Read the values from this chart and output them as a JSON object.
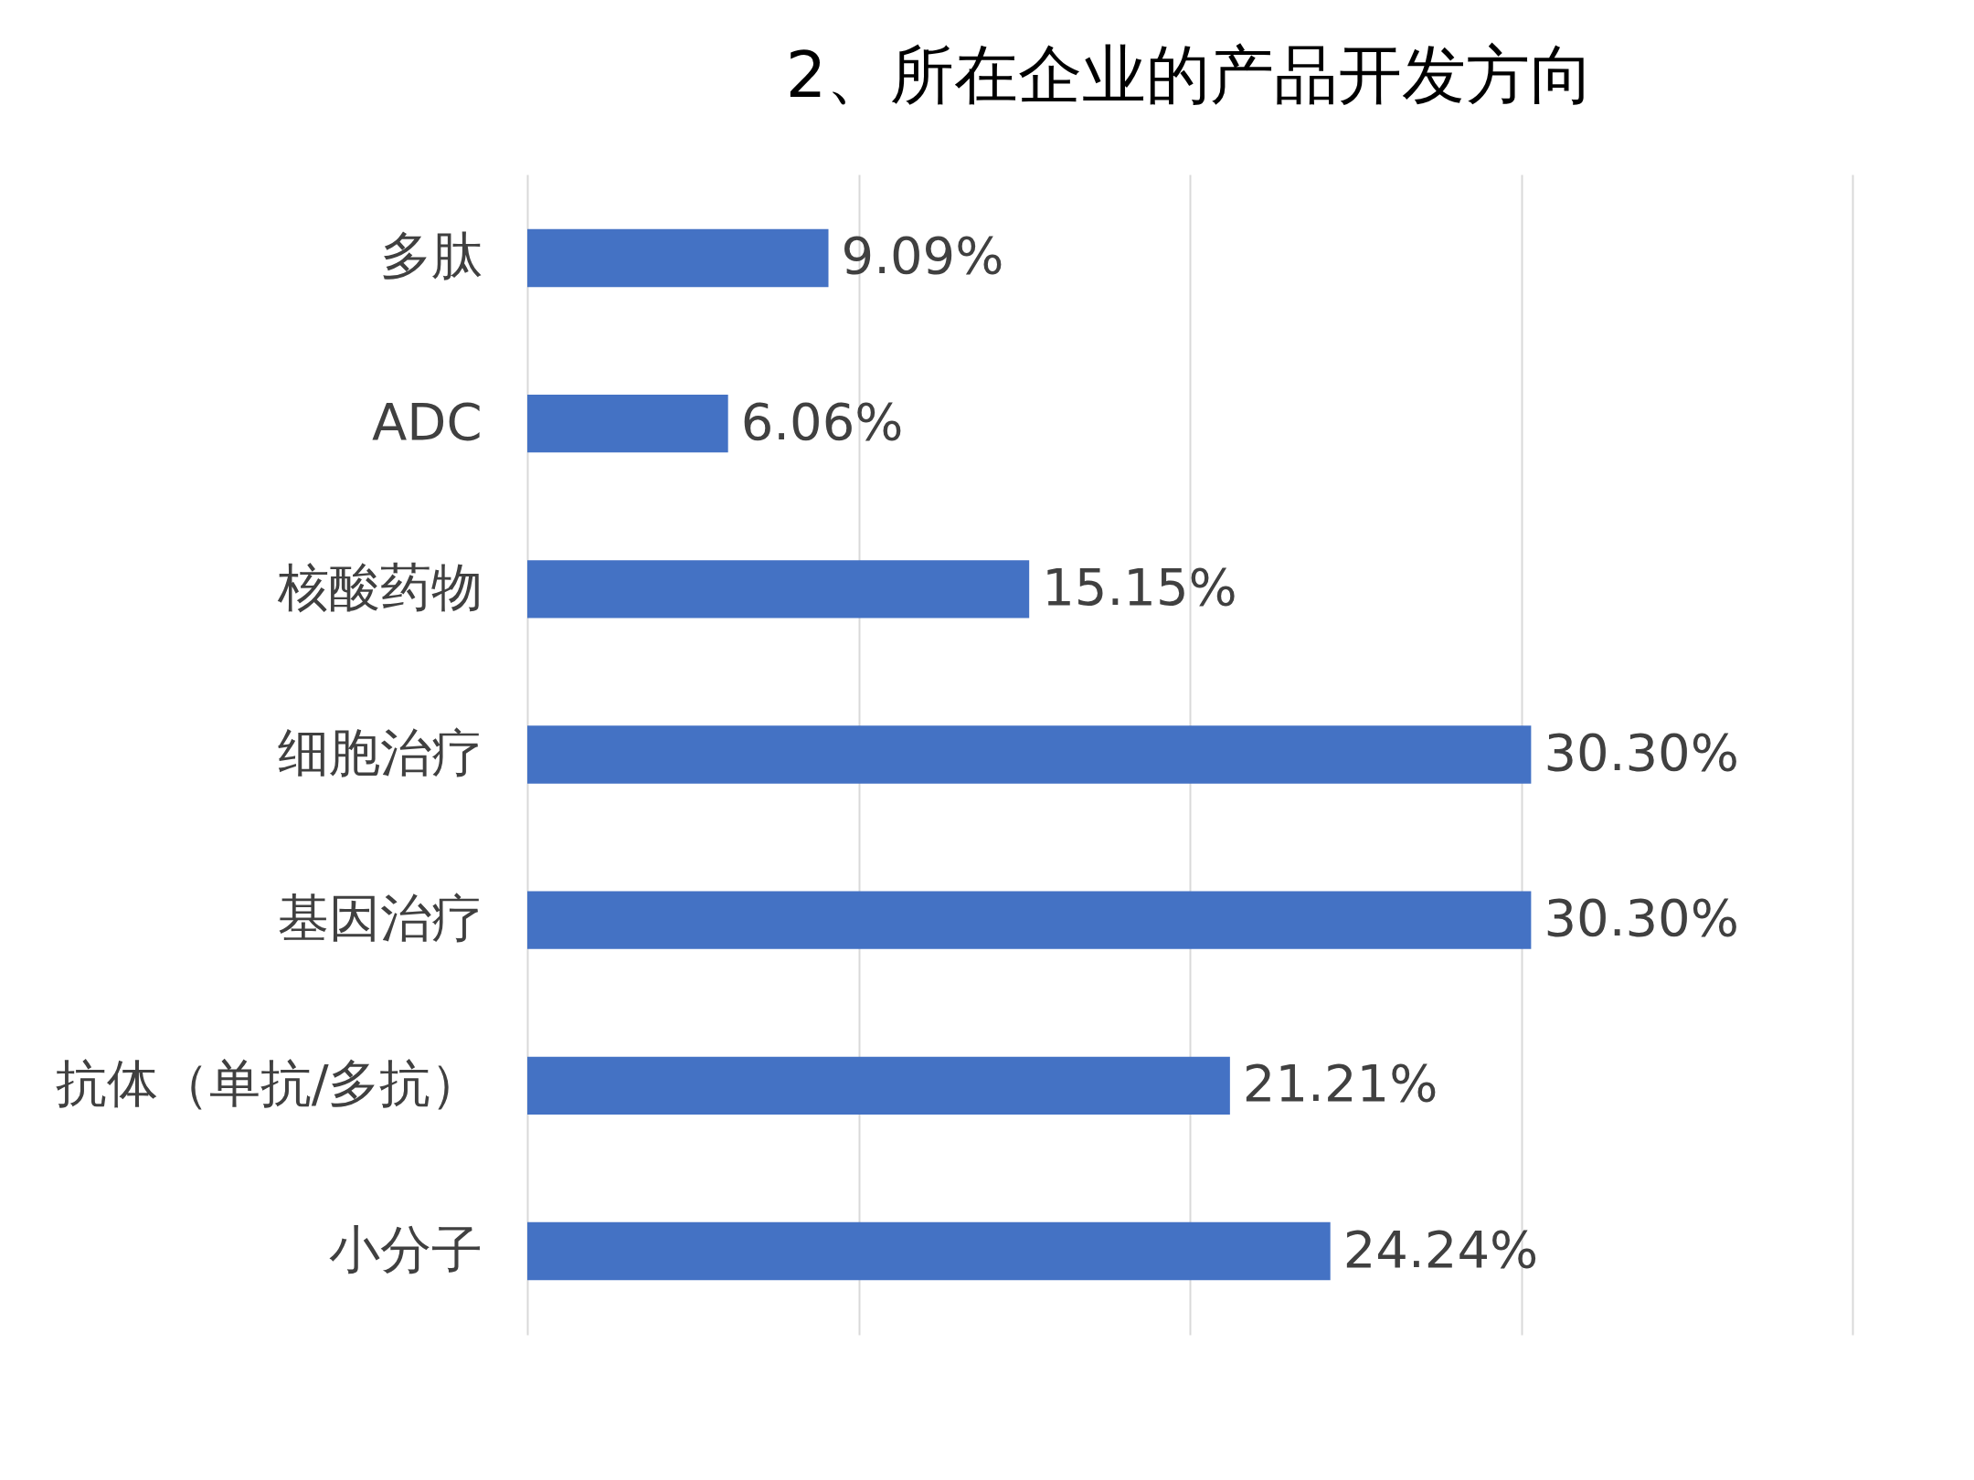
{
  "chart_data": {
    "type": "bar",
    "orientation": "horizontal",
    "title": "2、所在企业的产品开发方向",
    "categories": [
      "多肽",
      "ADC",
      "核酸药物",
      "细胞治疗",
      "基因治疗",
      "抗体（单抗/多抗）",
      "小分子"
    ],
    "values": [
      9.09,
      6.06,
      15.15,
      30.3,
      30.3,
      21.21,
      24.24
    ],
    "value_labels": [
      "9.09%",
      "6.06%",
      "15.15%",
      "30.30%",
      "30.30%",
      "21.21%",
      "24.24%"
    ],
    "color": "#4472c4",
    "xlim": [
      0,
      40
    ],
    "xticks": [
      {
        "value": 0,
        "label": null
      },
      {
        "value": 10,
        "label": null
      },
      {
        "value": 20,
        "label": null
      },
      {
        "value": 30,
        "label": null
      },
      {
        "value": 40,
        "label": null
      }
    ],
    "grid": "x",
    "tick_labels": "y"
  }
}
